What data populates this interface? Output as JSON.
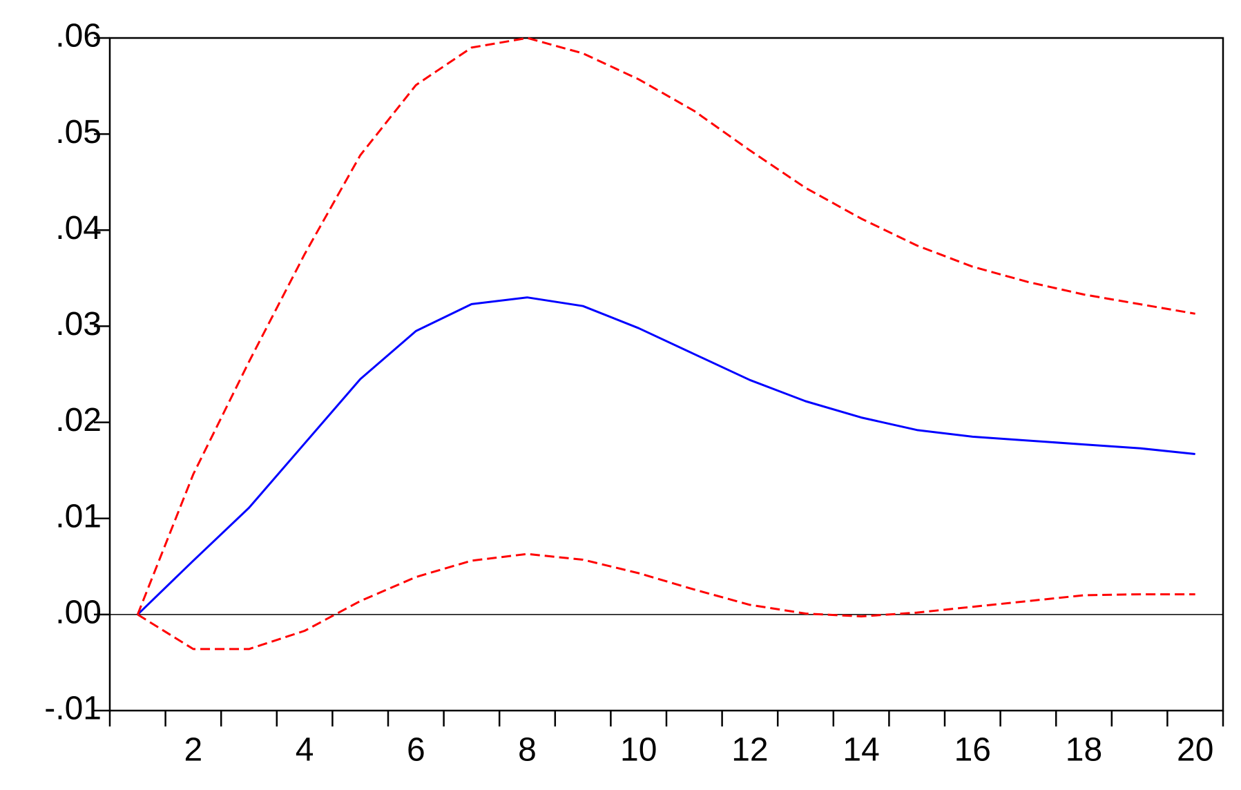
{
  "chart_data": {
    "type": "line",
    "categories": [
      null,
      "2",
      null,
      "4",
      null,
      "6",
      null,
      "8",
      null,
      "10",
      null,
      "12",
      null,
      "14",
      null,
      "16",
      null,
      "18",
      null,
      "20"
    ],
    "series": [
      {
        "color": "#0000ff",
        "dashed": false,
        "values": [
          0,
          0.0056,
          0.0111,
          0.0178,
          0.0245,
          0.0295,
          0.0323,
          0.033,
          0.0321,
          0.0298,
          0.0271,
          0.0244,
          0.0222,
          0.0205,
          0.0192,
          0.0185,
          0.0181,
          0.0177,
          0.0173,
          0.0167
        ]
      },
      {
        "color": "#ff0000",
        "dashed": true,
        "values": [
          0,
          0.0146,
          0.0263,
          0.0375,
          0.0478,
          0.0551,
          0.059,
          0.06,
          0.0584,
          0.0557,
          0.0524,
          0.0483,
          0.0444,
          0.0412,
          0.0384,
          0.0362,
          0.0346,
          0.0333,
          0.0323,
          0.0313
        ]
      },
      {
        "color": "#ff0000",
        "dashed": true,
        "values": [
          0,
          -0.0036,
          -0.0036,
          -0.0017,
          0.0014,
          0.0039,
          0.0056,
          0.0063,
          0.0057,
          0.0043,
          0.0026,
          0.001,
          0.0001,
          -0.0002,
          0.0002,
          0.0008,
          0.0014,
          0.002,
          0.0021,
          0.0021
        ]
      }
    ],
    "ylim": [
      -0.01,
      0.06
    ],
    "yticks": [
      {
        "value": -0.01,
        "label": "-.01"
      },
      {
        "value": 0,
        "label": ".00"
      },
      {
        "value": 0.01,
        "label": ".01"
      },
      {
        "value": 0.02,
        "label": ".02"
      },
      {
        "value": 0.03,
        "label": ".03"
      },
      {
        "value": 0.04,
        "label": ".04"
      },
      {
        "value": 0.05,
        "label": ".05"
      },
      {
        "value": 0.06,
        "label": ".06"
      }
    ],
    "grid": false,
    "zero_line": true
  }
}
